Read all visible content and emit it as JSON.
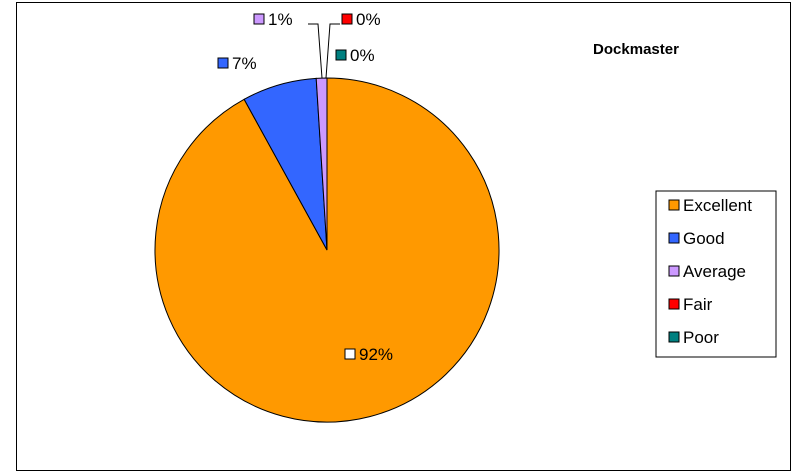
{
  "chart_data": {
    "type": "pie",
    "title": "Dockmaster",
    "categories": [
      "Excellent",
      "Good",
      "Average",
      "Fair",
      "Poor"
    ],
    "values": [
      92,
      7,
      1,
      0,
      0
    ],
    "data_labels": [
      "92%",
      "7%",
      "1%",
      "0%",
      "0%"
    ],
    "colors": [
      "#FF9900",
      "#3366FF",
      "#CC99FF",
      "#FF0000",
      "#008080"
    ],
    "legend_position": "right"
  }
}
